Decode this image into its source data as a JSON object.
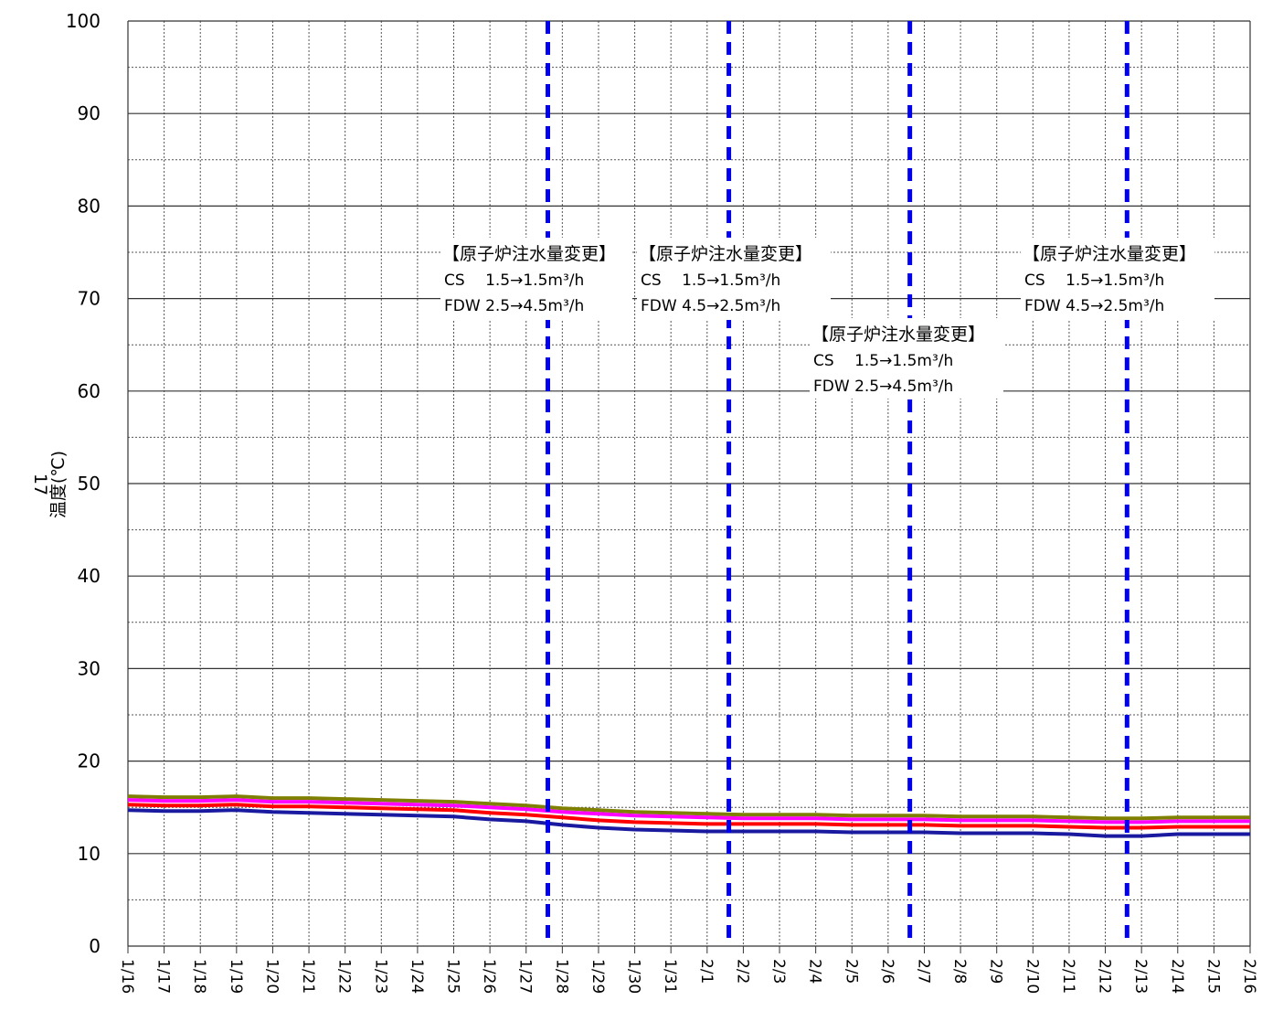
{
  "chart_data": {
    "type": "line",
    "title": "",
    "xlabel": "",
    "ylabel": "温度(℃)",
    "ylabel_secondary": "17",
    "ylim": [
      0,
      100
    ],
    "yticks": [
      0,
      10,
      20,
      30,
      40,
      50,
      60,
      70,
      80,
      90,
      100
    ],
    "ytick_labels": [
      "0",
      "10",
      "20",
      "30",
      "40",
      "50",
      "60",
      "70",
      "80",
      "90",
      "100"
    ],
    "y_minor_grid_step": 5,
    "grid": true,
    "categories": [
      "1/16",
      "1/17",
      "1/18",
      "1/19",
      "1/20",
      "1/21",
      "1/22",
      "1/23",
      "1/24",
      "1/25",
      "1/26",
      "1/27",
      "1/28",
      "1/29",
      "1/30",
      "1/31",
      "2/1",
      "2/2",
      "2/3",
      "2/4",
      "2/5",
      "2/6",
      "2/7",
      "2/8",
      "2/9",
      "2/10",
      "2/11",
      "2/12",
      "2/13",
      "2/14",
      "2/15",
      "2/16"
    ],
    "xlim": [
      "1/16",
      "2/16"
    ],
    "series": [
      {
        "color": "#808000",
        "values": [
          16.2,
          16.1,
          16.1,
          16.2,
          16.0,
          16.0,
          15.9,
          15.8,
          15.7,
          15.6,
          15.4,
          15.2,
          14.9,
          14.7,
          14.5,
          14.4,
          14.3,
          14.2,
          14.2,
          14.2,
          14.1,
          14.1,
          14.1,
          14.0,
          14.0,
          14.0,
          13.9,
          13.8,
          13.8,
          13.9,
          13.9,
          13.9
        ]
      },
      {
        "color": "#ff00ff",
        "values": [
          15.8,
          15.7,
          15.7,
          15.8,
          15.6,
          15.6,
          15.5,
          15.4,
          15.3,
          15.2,
          15.0,
          14.8,
          14.5,
          14.3,
          14.1,
          14.0,
          13.9,
          13.8,
          13.8,
          13.8,
          13.7,
          13.7,
          13.7,
          13.6,
          13.6,
          13.6,
          13.5,
          13.4,
          13.4,
          13.5,
          13.5,
          13.5
        ]
      },
      {
        "color": "#ff0000",
        "values": [
          15.3,
          15.2,
          15.2,
          15.3,
          15.1,
          15.1,
          15.0,
          14.9,
          14.8,
          14.7,
          14.4,
          14.2,
          13.9,
          13.6,
          13.4,
          13.3,
          13.2,
          13.2,
          13.2,
          13.2,
          13.1,
          13.1,
          13.1,
          13.0,
          13.0,
          13.0,
          12.9,
          12.8,
          12.8,
          12.9,
          12.9,
          12.9
        ]
      },
      {
        "color": "#1a1aa0",
        "values": [
          14.7,
          14.6,
          14.6,
          14.7,
          14.5,
          14.4,
          14.3,
          14.2,
          14.1,
          14.0,
          13.7,
          13.5,
          13.1,
          12.8,
          12.6,
          12.5,
          12.4,
          12.4,
          12.4,
          12.4,
          12.3,
          12.3,
          12.3,
          12.2,
          12.2,
          12.2,
          12.1,
          11.9,
          11.9,
          12.1,
          12.1,
          12.1
        ]
      }
    ],
    "event_lines": [
      "1/27",
      "2/1",
      "2/6",
      "2/12"
    ],
    "event_line_color": "#0000ee",
    "event_offsets": [
      0.6,
      0.6,
      0.6,
      0.6
    ],
    "annotations": [
      {
        "title": "【原子炉注水量変更】",
        "line1": "CS　 1.5→1.5m³/h",
        "line2": "FDW  2.5→4.5m³/h"
      },
      {
        "title": "【原子炉注水量変更】",
        "line1": "CS　 1.5→1.5m³/h",
        "line2": "FDW  4.5→2.5m³/h"
      },
      {
        "title": "【原子炉注水量変更】",
        "line1": "CS　 1.5→1.5m³/h",
        "line2": "FDW  2.5→4.5m³/h"
      },
      {
        "title": "【原子炉注水量変更】",
        "line1": "CS　 1.5→1.5m³/h",
        "line2": "FDW  4.5→2.5m³/h"
      }
    ]
  }
}
